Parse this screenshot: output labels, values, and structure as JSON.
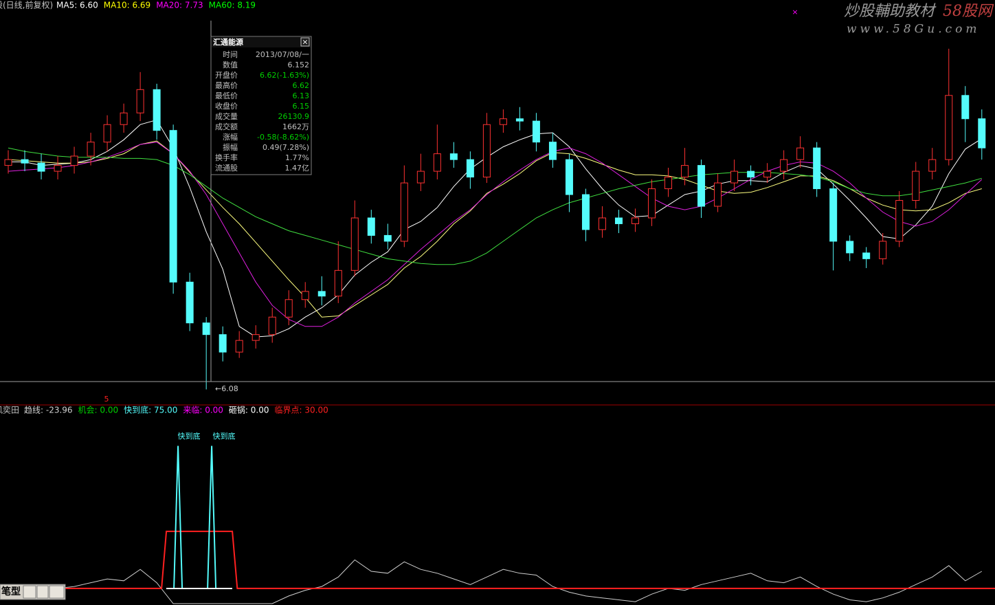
{
  "header": {
    "title": "股(日线,前复权)"
  },
  "chart_data": [
    {
      "type": "candlestick",
      "legend": [
        {
          "text": "MA5: 6.60",
          "color": "#ffffff"
        },
        {
          "text": "MA10: 6.69",
          "color": "#ffff00"
        },
        {
          "text": "MA20: 7.73",
          "color": "#ff00ff"
        },
        {
          "text": "MA60: 8.19",
          "color": "#00ff00"
        }
      ],
      "up_color": "#ff3232",
      "down_color": "#54fcfc",
      "xlim": [
        -0.5,
        59.8
      ],
      "ylim": [
        6.0,
        9.3
      ],
      "open": [
        8.0,
        8.05,
        8.02,
        7.95,
        8.0,
        8.08,
        8.2,
        8.35,
        8.45,
        8.65,
        8.3,
        7.0,
        6.65,
        6.55,
        6.4,
        6.5,
        6.55,
        6.7,
        6.85,
        6.92,
        6.88,
        7.1,
        7.55,
        7.4,
        7.35,
        7.85,
        7.95,
        8.1,
        8.05,
        7.9,
        8.35,
        8.4,
        8.38,
        8.2,
        8.05,
        7.75,
        7.45,
        7.55,
        7.5,
        7.55,
        7.8,
        7.9,
        8.0,
        7.65,
        7.85,
        7.95,
        7.9,
        7.95,
        8.05,
        8.15,
        7.8,
        7.35,
        7.25,
        7.2,
        7.35,
        7.7,
        7.95,
        8.05,
        8.6,
        8.4
      ],
      "high": [
        8.13,
        8.13,
        8.1,
        8.08,
        8.16,
        8.28,
        8.43,
        8.53,
        8.8,
        8.7,
        8.35,
        7.08,
        6.7,
        6.62,
        6.58,
        6.63,
        6.78,
        6.93,
        7.0,
        7.05,
        7.35,
        7.7,
        7.62,
        7.5,
        8.0,
        8.1,
        8.35,
        8.2,
        8.12,
        8.45,
        8.48,
        8.5,
        8.45,
        8.28,
        8.1,
        7.8,
        7.65,
        7.62,
        7.63,
        7.88,
        7.98,
        8.15,
        8.05,
        7.93,
        8.05,
        8.0,
        8.02,
        8.13,
        8.25,
        8.2,
        7.85,
        7.4,
        7.3,
        7.42,
        7.78,
        8.03,
        8.15,
        9.0,
        8.68,
        8.48
      ],
      "low": [
        7.93,
        7.95,
        7.88,
        7.88,
        7.93,
        8.0,
        8.12,
        8.28,
        8.38,
        8.22,
        6.9,
        6.58,
        6.08,
        6.32,
        6.35,
        6.43,
        6.48,
        6.63,
        6.78,
        6.8,
        6.82,
        7.05,
        7.33,
        7.28,
        7.3,
        7.78,
        7.88,
        7.98,
        7.8,
        7.85,
        8.28,
        8.3,
        8.12,
        7.98,
        7.6,
        7.35,
        7.38,
        7.42,
        7.43,
        7.48,
        7.73,
        7.83,
        7.55,
        7.6,
        7.78,
        7.83,
        7.85,
        7.88,
        7.98,
        7.73,
        7.1,
        7.18,
        7.12,
        7.15,
        7.3,
        7.63,
        7.88,
        8.0,
        8.2,
        8.05
      ],
      "close": [
        8.05,
        8.02,
        7.95,
        8.0,
        8.08,
        8.2,
        8.35,
        8.45,
        8.65,
        8.3,
        7.0,
        6.65,
        6.55,
        6.4,
        6.5,
        6.55,
        6.7,
        6.85,
        6.92,
        6.88,
        7.1,
        7.55,
        7.4,
        7.35,
        7.85,
        7.95,
        8.1,
        8.05,
        7.9,
        8.35,
        8.4,
        8.38,
        8.2,
        8.05,
        7.75,
        7.45,
        7.55,
        7.5,
        7.55,
        7.8,
        7.9,
        8.0,
        7.65,
        7.85,
        7.95,
        7.9,
        7.95,
        8.05,
        8.15,
        7.8,
        7.35,
        7.25,
        7.2,
        7.35,
        7.7,
        7.95,
        8.05,
        8.6,
        8.4,
        8.15
      ],
      "series": [
        {
          "color": "#ffffff",
          "values": [
            8.03,
            8.03,
            8.0,
            8.01,
            8.02,
            8.05,
            8.12,
            8.22,
            8.35,
            8.39,
            8.15,
            7.81,
            7.43,
            7.11,
            6.62,
            6.53,
            6.54,
            6.6,
            6.7,
            6.78,
            6.89,
            7.06,
            7.17,
            7.26,
            7.45,
            7.52,
            7.64,
            7.82,
            7.97,
            8.07,
            8.16,
            8.22,
            8.27,
            8.28,
            8.16,
            7.97,
            7.8,
            7.66,
            7.56,
            7.57,
            7.66,
            7.75,
            7.78,
            7.84,
            7.87,
            7.87,
            7.86,
            7.94,
            8.0,
            7.97,
            7.84,
            7.7,
            7.55,
            7.39,
            7.37,
            7.49,
            7.65,
            7.93,
            8.14,
            8.23
          ]
        },
        {
          "color": "#ffff80",
          "values": [
            8.05,
            8.04,
            8.03,
            8.02,
            8.02,
            8.03,
            8.06,
            8.1,
            8.18,
            8.21,
            8.1,
            7.94,
            7.79,
            7.64,
            7.5,
            7.34,
            7.18,
            7.02,
            6.87,
            6.7,
            6.71,
            6.8,
            6.89,
            6.98,
            7.12,
            7.22,
            7.35,
            7.5,
            7.61,
            7.76,
            7.84,
            7.93,
            8.04,
            8.11,
            8.1,
            8.06,
            8.01,
            7.96,
            7.92,
            7.92,
            7.91,
            7.88,
            7.83,
            7.78,
            7.76,
            7.77,
            7.81,
            7.86,
            7.91,
            7.91,
            7.87,
            7.8,
            7.72,
            7.66,
            7.62,
            7.61,
            7.62,
            7.68,
            7.76,
            7.8
          ]
        },
        {
          "color": "#e020e0",
          "values": [
            7.95,
            7.96,
            7.97,
            7.98,
            8.0,
            8.03,
            8.07,
            8.12,
            8.18,
            8.2,
            8.1,
            7.95,
            7.75,
            7.5,
            7.25,
            7.0,
            6.8,
            6.68,
            6.62,
            6.62,
            6.7,
            6.82,
            6.92,
            7.02,
            7.15,
            7.28,
            7.4,
            7.52,
            7.62,
            7.75,
            7.86,
            7.96,
            8.05,
            8.12,
            8.15,
            8.1,
            8.02,
            7.92,
            7.82,
            7.72,
            7.65,
            7.62,
            7.65,
            7.72,
            7.8,
            7.88,
            7.95,
            8.0,
            8.03,
            8.02,
            7.95,
            7.85,
            7.72,
            7.6,
            7.52,
            7.48,
            7.52,
            7.62,
            7.75,
            7.88
          ]
        },
        {
          "color": "#40e040",
          "values": [
            8.15,
            8.12,
            8.1,
            8.08,
            8.07,
            8.07,
            8.07,
            8.06,
            8.06,
            8.05,
            8.0,
            7.92,
            7.82,
            7.72,
            7.64,
            7.56,
            7.5,
            7.44,
            7.4,
            7.36,
            7.32,
            7.28,
            7.24,
            7.2,
            7.18,
            7.16,
            7.15,
            7.15,
            7.18,
            7.25,
            7.35,
            7.45,
            7.55,
            7.62,
            7.68,
            7.72,
            7.76,
            7.8,
            7.83,
            7.86,
            7.88,
            7.9,
            7.92,
            7.93,
            7.94,
            7.94,
            7.94,
            7.93,
            7.92,
            7.9,
            7.86,
            7.8,
            7.76,
            7.74,
            7.74,
            7.76,
            7.79,
            7.82,
            7.85,
            7.89
          ]
        }
      ],
      "low_label": "←6.08",
      "marker": "5"
    },
    {
      "type": "line",
      "title": "风奕田",
      "legend": [
        {
          "text": "趋线: -23.96",
          "color": "#d0d0d0"
        },
        {
          "text": "机会: 0.00",
          "color": "#00d000"
        },
        {
          "text": "快到底: 75.00",
          "color": "#54fcfc"
        },
        {
          "text": "来临: 0.00",
          "color": "#ff00ff"
        },
        {
          "text": "砸锅: 0.00",
          "color": "#ffffff"
        },
        {
          "text": "临界点: 30.00",
          "color": "#ff2020"
        }
      ],
      "xlim": [
        -0.5,
        59.8
      ],
      "ylim": [
        -8,
        90
      ],
      "series": [
        {
          "color": "#d0d0d0",
          "x": [
            0,
            1,
            2,
            3,
            4,
            5,
            6,
            7,
            8,
            9,
            10,
            11,
            12,
            13,
            14,
            15,
            16,
            17,
            18,
            19,
            20,
            21,
            22,
            23,
            24,
            25,
            26,
            27,
            28,
            29,
            30,
            31,
            32,
            33,
            34,
            35,
            36,
            37,
            38,
            39,
            40,
            41,
            42,
            43,
            44,
            45,
            46,
            47,
            48,
            49,
            50,
            51,
            52,
            53,
            54,
            55,
            56,
            57,
            58,
            59
          ],
          "values": [
            0,
            0,
            0,
            0,
            1,
            3,
            5,
            4,
            10,
            3,
            -8,
            -8,
            -8,
            -8,
            -8,
            -8,
            -8,
            -4,
            -1,
            1,
            6,
            15,
            9,
            8,
            14,
            10,
            8,
            5,
            2,
            6,
            10,
            8,
            7,
            1,
            -2,
            -4,
            -5,
            -6,
            -7,
            -3,
            0,
            -1,
            2,
            4,
            6,
            8,
            4,
            3,
            6,
            1,
            -3,
            -6,
            -7,
            -5,
            -2,
            2,
            6,
            12,
            4,
            9
          ]
        },
        {
          "color": "#ff2020",
          "x": [
            -0.5,
            9.29,
            9.58,
            13.58,
            13.88,
            59.8
          ],
          "values": [
            0,
            0,
            30,
            30,
            0,
            0
          ]
        },
        {
          "color": "#54fcfc",
          "x": [
            10.04,
            10.29,
            10.54,
            11.0,
            12.08,
            12.33,
            12.58
          ],
          "values": [
            0,
            75,
            0,
            null,
            0,
            75,
            0
          ]
        }
      ],
      "annotations": [
        "快到底",
        "快到底"
      ]
    }
  ],
  "tooltip": {
    "title": "汇通能源",
    "rows": [
      {
        "label": "时间",
        "value": "2013/07/08/一",
        "color": "#c0c0c0"
      },
      {
        "label": "数值",
        "value": "6.152",
        "color": "#c0c0c0"
      },
      {
        "label": "开盘价",
        "value": "6.62(-1.63%)",
        "color": "#00d000"
      },
      {
        "label": "最高价",
        "value": "6.62",
        "color": "#00d000"
      },
      {
        "label": "最低价",
        "value": "6.13",
        "color": "#00d000"
      },
      {
        "label": "收盘价",
        "value": "6.15",
        "color": "#00d000"
      },
      {
        "label": "成交量",
        "value": "26130.9",
        "color": "#00d000"
      },
      {
        "label": "成交额",
        "value": "1662万",
        "color": "#c0c0c0"
      },
      {
        "label": "涨幅",
        "value": "-0.58(-8.62%)",
        "color": "#00d000"
      },
      {
        "label": "振幅",
        "value": "0.49(7.28%)",
        "color": "#c0c0c0"
      },
      {
        "label": "换手率",
        "value": "1.77%",
        "color": "#c0c0c0"
      },
      {
        "label": "流通股",
        "value": "1.47亿",
        "color": "#c0c0c0"
      }
    ]
  },
  "watermark": {
    "text": "炒股輔助教材",
    "brand": "58股网",
    "url": "www.58Gu.com"
  },
  "toolbar": {
    "label": "笔型"
  }
}
